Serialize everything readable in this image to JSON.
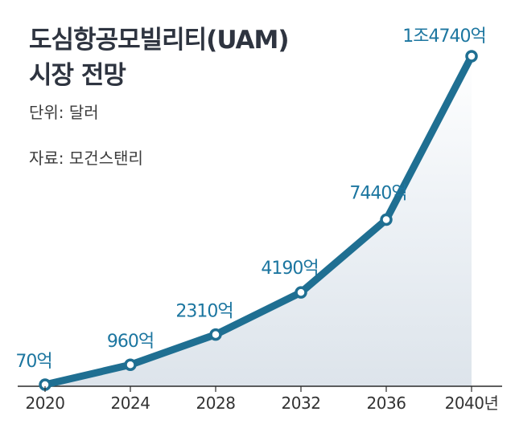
{
  "header": {
    "title_line1": "도심항공모빌리티(UAM)",
    "title_line2": "시장 전망",
    "unit": "단위: 달러",
    "source": "자료: 모건스탠리"
  },
  "chart_data": {
    "type": "line",
    "title": "도심항공모빌리티(UAM) 시장 전망",
    "unit": "단위: 달러",
    "source": "자료: 모건스탠리",
    "categories": [
      "2020",
      "2024",
      "2028",
      "2032",
      "2036",
      "2040년"
    ],
    "x": [
      2020,
      2024,
      2028,
      2032,
      2036,
      2040
    ],
    "series": [
      {
        "values": [
          7000000000,
          96000000000,
          231000000000,
          419000000000,
          744000000000,
          1474000000000
        ],
        "labels": [
          "70억",
          "960억",
          "2310억",
          "4190억",
          "7440억",
          "1조4740억"
        ]
      }
    ],
    "ylim": [
      0,
      1474000000000
    ],
    "grid": false,
    "colors": {
      "line": "#1f6f92",
      "label": "#1c76a0",
      "marker_fill": "#ffffff"
    }
  }
}
